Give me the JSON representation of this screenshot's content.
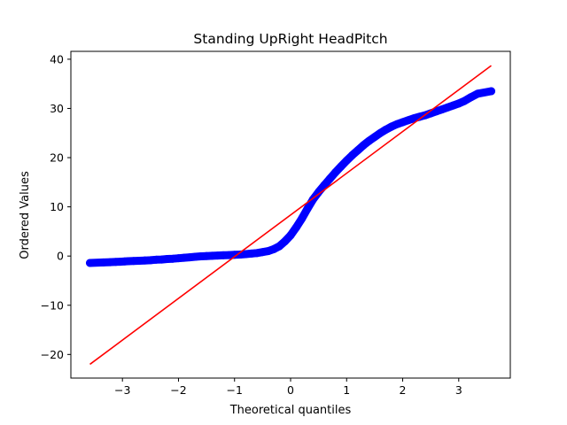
{
  "chart_data": {
    "type": "scatter",
    "title": "Standing UpRight HeadPitch",
    "xlabel": "Theoretical quantiles",
    "ylabel": "Ordered Values",
    "xlim": [
      -3.92,
      3.92
    ],
    "ylim": [
      -24.8,
      41.6
    ],
    "x_ticks": [
      -3,
      -2,
      -1,
      0,
      1,
      2,
      3
    ],
    "y_ticks": [
      -20,
      -10,
      0,
      10,
      20,
      30,
      40
    ],
    "x_tick_labels": [
      "−3",
      "−2",
      "−1",
      "0",
      "1",
      "2",
      "3"
    ],
    "y_tick_labels": [
      "−20",
      "−10",
      "0",
      "10",
      "20",
      "30",
      "40"
    ],
    "grid": false,
    "series": [
      {
        "kind": "points",
        "color": "#0000ff",
        "points": [
          [
            -3.58,
            -1.4
          ],
          [
            -3.34,
            -1.3
          ],
          [
            -3.22,
            -1.25
          ],
          [
            -3.12,
            -1.2
          ],
          [
            -3.04,
            -1.15
          ],
          [
            -2.96,
            -1.1
          ],
          [
            -2.9,
            -1.05
          ],
          [
            -2.8,
            -1.0
          ],
          [
            -2.7,
            -0.95
          ],
          [
            -2.6,
            -0.9
          ],
          [
            -2.5,
            -0.85
          ],
          [
            -2.4,
            -0.75
          ],
          [
            -2.3,
            -0.7
          ],
          [
            -2.2,
            -0.6
          ],
          [
            -2.1,
            -0.55
          ],
          [
            -2.0,
            -0.45
          ],
          [
            -1.9,
            -0.35
          ],
          [
            -1.8,
            -0.25
          ],
          [
            -1.7,
            -0.15
          ],
          [
            -1.6,
            -0.05
          ],
          [
            -1.5,
            0.0
          ],
          [
            -1.4,
            0.05
          ],
          [
            -1.3,
            0.1
          ],
          [
            -1.2,
            0.15
          ],
          [
            -1.1,
            0.2
          ],
          [
            -1.0,
            0.25
          ],
          [
            -0.9,
            0.3
          ],
          [
            -0.8,
            0.4
          ],
          [
            -0.7,
            0.5
          ],
          [
            -0.6,
            0.6
          ],
          [
            -0.5,
            0.8
          ],
          [
            -0.4,
            1.0
          ],
          [
            -0.3,
            1.4
          ],
          [
            -0.2,
            2.0
          ],
          [
            -0.1,
            3.0
          ],
          [
            0.0,
            4.2
          ],
          [
            0.1,
            5.8
          ],
          [
            0.2,
            7.6
          ],
          [
            0.3,
            9.6
          ],
          [
            0.4,
            11.5
          ],
          [
            0.5,
            13.0
          ],
          [
            0.6,
            14.4
          ],
          [
            0.7,
            15.7
          ],
          [
            0.8,
            17.0
          ],
          [
            0.9,
            18.2
          ],
          [
            1.0,
            19.4
          ],
          [
            1.1,
            20.5
          ],
          [
            1.2,
            21.5
          ],
          [
            1.3,
            22.5
          ],
          [
            1.4,
            23.4
          ],
          [
            1.5,
            24.2
          ],
          [
            1.6,
            25.0
          ],
          [
            1.7,
            25.7
          ],
          [
            1.8,
            26.3
          ],
          [
            1.9,
            26.8
          ],
          [
            2.0,
            27.2
          ],
          [
            2.1,
            27.6
          ],
          [
            2.2,
            28.0
          ],
          [
            2.3,
            28.3
          ],
          [
            2.4,
            28.6
          ],
          [
            2.5,
            29.0
          ],
          [
            2.6,
            29.4
          ],
          [
            2.7,
            29.8
          ],
          [
            2.8,
            30.2
          ],
          [
            2.9,
            30.6
          ],
          [
            3.0,
            31.0
          ],
          [
            3.1,
            31.5
          ],
          [
            3.22,
            32.3
          ],
          [
            3.34,
            33.0
          ],
          [
            3.58,
            33.5
          ]
        ]
      },
      {
        "kind": "line",
        "color": "#ff0000",
        "points": [
          [
            -3.58,
            -22.0
          ],
          [
            3.58,
            38.7
          ]
        ]
      }
    ]
  }
}
